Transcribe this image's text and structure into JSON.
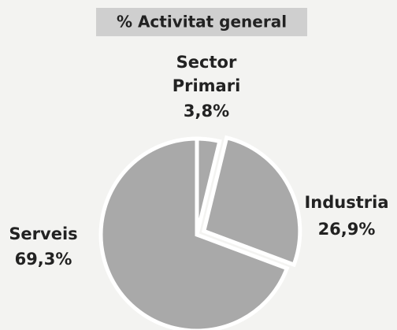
{
  "chart_data": {
    "type": "pie",
    "title": "% Activitat general",
    "categories": [
      "Sector Primari",
      "Industria",
      "Serveis"
    ],
    "values": [
      3.8,
      26.9,
      69.3
    ],
    "value_labels": [
      "3,8%",
      "26,9%",
      "69,3%"
    ],
    "color": "#a9a9a9"
  }
}
